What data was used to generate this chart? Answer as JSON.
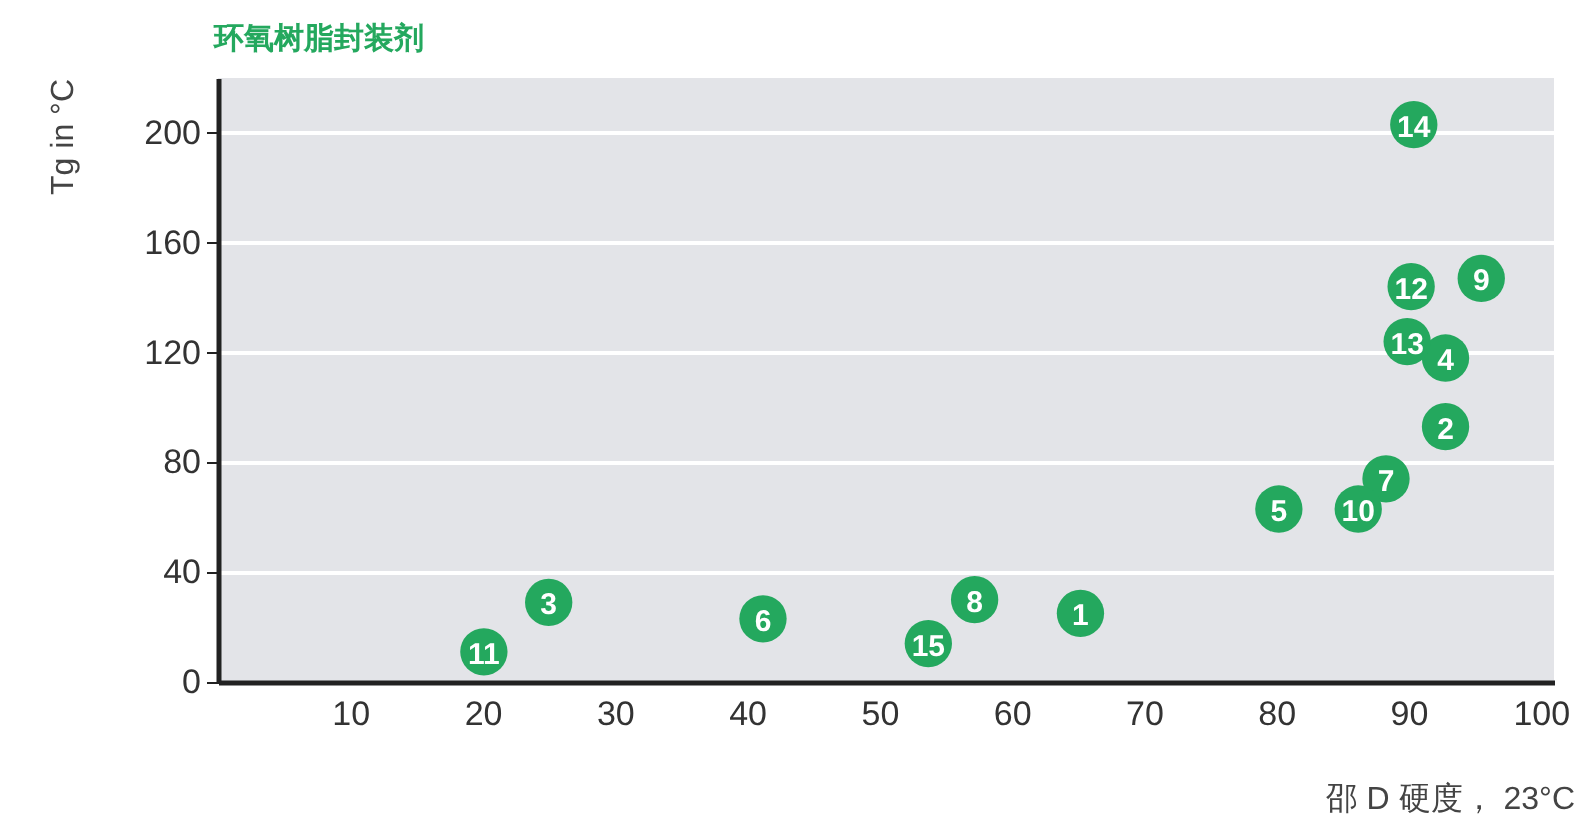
{
  "chart_data": {
    "type": "scatter",
    "title": "环氧树脂封装剂",
    "xlabel": "邵 D 硬度， 23°C",
    "ylabel": "Tg in °C",
    "x": [
      65.2,
      92.8,
      25,
      92.8,
      80.2,
      41.2,
      88.3,
      57.2,
      95.5,
      86.2,
      20.1,
      90.2,
      89.9,
      90.4,
      53.7
    ],
    "values": [
      25,
      93,
      29,
      118,
      63,
      23,
      74,
      30,
      147,
      63,
      11,
      144,
      124,
      203,
      14
    ],
    "color": "#24a85e",
    "marker": "circle",
    "xlim": [
      0,
      101
    ],
    "ylim": [
      0,
      220
    ],
    "xticks": [
      10,
      20,
      30,
      40,
      50,
      60,
      70,
      80,
      90,
      100
    ],
    "yticks": [
      0,
      40,
      80,
      120,
      160,
      200
    ],
    "grid": "y",
    "annotations": [
      {
        "text": "1",
        "x": 65.2,
        "y": 25
      },
      {
        "text": "2",
        "x": 92.8,
        "y": 93
      },
      {
        "text": "3",
        "x": 25,
        "y": 29
      },
      {
        "text": "4",
        "x": 92.8,
        "y": 118
      },
      {
        "text": "5",
        "x": 80.2,
        "y": 63
      },
      {
        "text": "6",
        "x": 41.2,
        "y": 23
      },
      {
        "text": "7",
        "x": 88.3,
        "y": 74
      },
      {
        "text": "8",
        "x": 57.2,
        "y": 30
      },
      {
        "text": "9",
        "x": 95.5,
        "y": 147
      },
      {
        "text": "10",
        "x": 86.2,
        "y": 63
      },
      {
        "text": "11",
        "x": 20.1,
        "y": 11
      },
      {
        "text": "12",
        "x": 90.2,
        "y": 144
      },
      {
        "text": "13",
        "x": 89.9,
        "y": 124
      },
      {
        "text": "14",
        "x": 90.4,
        "y": 203
      },
      {
        "text": "15",
        "x": 53.7,
        "y": 14
      }
    ]
  }
}
